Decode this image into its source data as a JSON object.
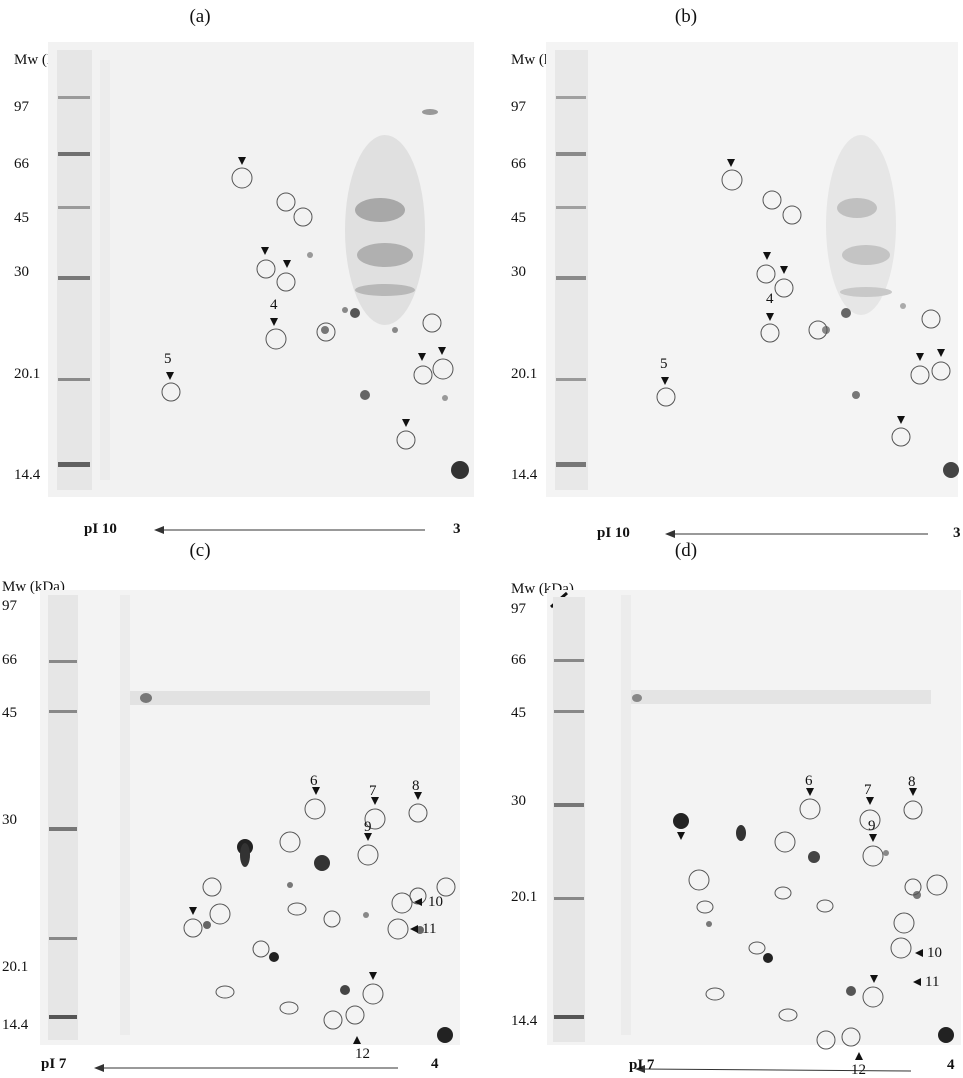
{
  "figure": {
    "panels": [
      {
        "label": "(a)",
        "mw_title": "Mw (kDa)",
        "mw_markers": [
          "97",
          "66",
          "45",
          "30",
          "20.1",
          "14.4"
        ],
        "ph_left": "pI 10",
        "ph_right": "3",
        "spot_labels": [
          "4",
          "5"
        ]
      },
      {
        "label": "(b)",
        "mw_title": "Mw (kDa)",
        "mw_markers": [
          "97",
          "66",
          "45",
          "30",
          "20.1",
          "14.4"
        ],
        "ph_left": "pI 10",
        "ph_right": "3",
        "spot_labels": [
          "4",
          "5"
        ]
      },
      {
        "label": "(c)",
        "mw_title": "Mw (kDa)",
        "mw_markers": [
          "97",
          "66",
          "45",
          "30",
          "20.1",
          "14.4"
        ],
        "ph_left": "pI 7",
        "ph_right": "4",
        "spot_labels": [
          "6",
          "7",
          "8",
          "9",
          "10",
          "11",
          "12"
        ]
      },
      {
        "label": "(d)",
        "mw_title": "Mw (kDa)",
        "mw_markers": [
          "97",
          "66",
          "45",
          "30",
          "20.1",
          "14.4"
        ],
        "ph_left": "pI 7",
        "ph_right": "4",
        "spot_labels": [
          "6",
          "7",
          "8",
          "9",
          "10",
          "11",
          "12"
        ]
      }
    ]
  }
}
